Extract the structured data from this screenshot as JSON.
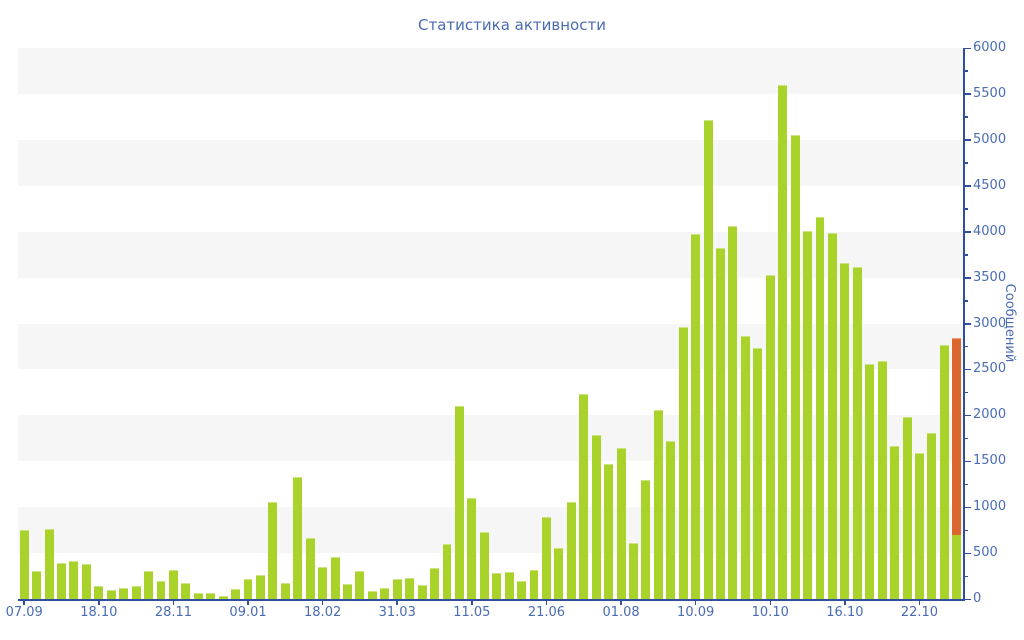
{
  "colors": {
    "bar_green": "#a9d32b",
    "bar_orange": "#dc672e",
    "text_blue": "#4a6cb3",
    "axis_blue": "#2f4f9e",
    "stripe_gray": "#f6f6f7",
    "background": "#ffffff"
  },
  "chart_data": {
    "type": "bar",
    "title": "Статистика активности",
    "ylabel": "Сообщений",
    "xlabel": "",
    "ylim": [
      0,
      6000
    ],
    "y_major_tick_step": 500,
    "y_minor_tick_step": 250,
    "y_tick_labels": [
      "0",
      "500",
      "1000",
      "1500",
      "2000",
      "2500",
      "3000",
      "3500",
      "4000",
      "4500",
      "5000",
      "5500",
      "6000"
    ],
    "grid": "alternating horizontal stripes every 500 units, gray bands at 500-1000, 1500-2000, 2500-3000, 3500-4000, 4500-5000, 5500-6000",
    "legend": "none",
    "x_tick_labels": [
      "07.09",
      "18.10",
      "28.11",
      "09.01",
      "18.02",
      "31.03",
      "11.05",
      "21.06",
      "01.08",
      "10.09",
      "10.10",
      "16.10",
      "22.10"
    ],
    "x_tick_bar_indexes": [
      0,
      6,
      12,
      18,
      24,
      30,
      36,
      42,
      48,
      54,
      60,
      66,
      72
    ],
    "values": [
      745,
      295,
      750,
      380,
      405,
      370,
      135,
      90,
      110,
      130,
      290,
      180,
      300,
      160,
      60,
      50,
      25,
      95,
      210,
      250,
      1050,
      160,
      1320,
      650,
      335,
      445,
      155,
      295,
      80,
      110,
      210,
      220,
      145,
      325,
      590,
      2090,
      1090,
      720,
      270,
      280,
      180,
      300,
      885,
      545,
      1050,
      2220,
      1775,
      1455,
      1630,
      600,
      1290,
      2050,
      1710,
      2950,
      3960,
      5210,
      3810,
      4050,
      2850,
      2720,
      3520,
      5590,
      5040,
      4000,
      4150,
      3980,
      3650,
      3600,
      2550,
      2580,
      1650,
      1970,
      1580,
      1800,
      2750,
      2830
    ],
    "stacked_final_bar": {
      "green_bottom": 700,
      "orange_top": 2830
    }
  }
}
